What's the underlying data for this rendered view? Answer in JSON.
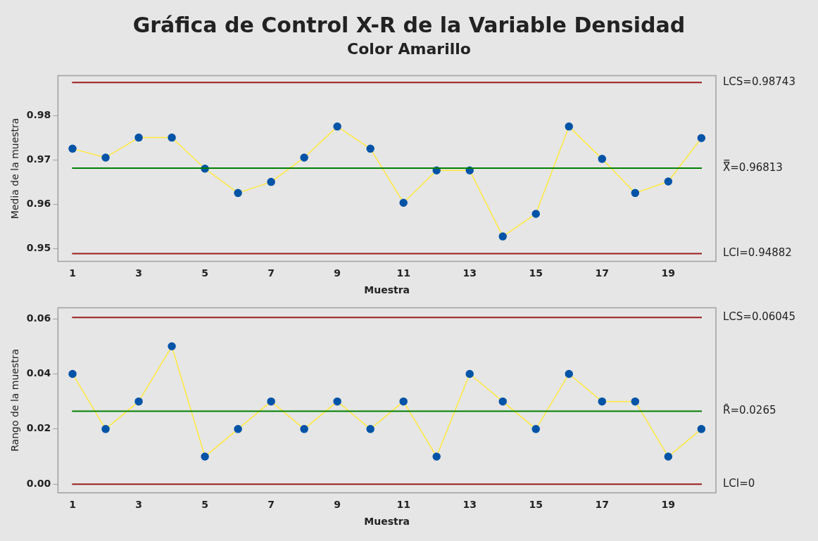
{
  "chart_data": [
    {
      "type": "line",
      "title": "Gráfica de Control X-R de la Variable Densidad",
      "subtitle": "Color Amarillo",
      "xlabel": "Muestra",
      "ylabel": "Media de la muestra",
      "x": [
        1,
        2,
        3,
        4,
        5,
        6,
        7,
        8,
        9,
        10,
        11,
        12,
        13,
        14,
        15,
        16,
        17,
        18,
        19,
        20
      ],
      "series": [
        {
          "color": "#ffe83c",
          "colors": [
            "#0054a6",
            "#0054a6",
            "#0054a6",
            "#0054a6",
            "#0054a6",
            "#0054a6",
            "#0054a6",
            "#0054a6",
            "#0054a6",
            "#0054a6",
            "#0054a6",
            "#0054a6",
            "#0054a6",
            "#0054a6",
            "#0054a6",
            "#0054a6",
            "#0054a6",
            "#0054a6",
            "#0054a6",
            "#0054a6"
          ],
          "values": [
            0.9725,
            0.9705,
            0.975,
            0.975,
            0.968,
            0.9625,
            0.965,
            0.9705,
            0.9775,
            0.9725,
            0.9603,
            0.9676,
            0.9676,
            0.9527,
            0.9578,
            0.9775,
            0.9702,
            0.9625,
            0.9651,
            0.9749
          ]
        }
      ],
      "xlim": [
        0.56,
        20.44
      ],
      "xticks": [
        1,
        3,
        5,
        7,
        9,
        11,
        13,
        15,
        17,
        19
      ],
      "ylim": [
        0.9471,
        0.989
      ],
      "yticks": [
        0.95,
        0.96,
        0.97,
        0.98
      ],
      "ref_lines": [
        {
          "axis": "y",
          "value": 0.98743,
          "label": "LCS=0.98743",
          "color": "#9b1c1c"
        },
        {
          "axis": "y",
          "value": 0.96813,
          "label": "X̿=0.96813",
          "color": "#008000"
        },
        {
          "axis": "y",
          "value": 0.94882,
          "label": "LCI=0.94882",
          "color": "#9b1c1c"
        }
      ],
      "marker": "circle",
      "line_style": "solid",
      "grid": false,
      "legend": false
    },
    {
      "type": "line",
      "xlabel": "Muestra",
      "ylabel": "Rango de la muestra",
      "x": [
        1,
        2,
        3,
        4,
        5,
        6,
        7,
        8,
        9,
        10,
        11,
        12,
        13,
        14,
        15,
        16,
        17,
        18,
        19,
        20
      ],
      "series": [
        {
          "color": "#ffe83c",
          "colors": [
            "#0054a6",
            "#0054a6",
            "#0054a6",
            "#0054a6",
            "#0054a6",
            "#0054a6",
            "#0054a6",
            "#0054a6",
            "#0054a6",
            "#0054a6",
            "#0054a6",
            "#0054a6",
            "#0054a6",
            "#0054a6",
            "#0054a6",
            "#0054a6",
            "#0054a6",
            "#0054a6",
            "#0054a6",
            "#0054a6"
          ],
          "values": [
            0.04,
            0.02,
            0.03,
            0.05,
            0.01,
            0.02,
            0.03,
            0.02,
            0.03,
            0.02,
            0.03,
            0.01,
            0.04,
            0.03,
            0.02,
            0.04,
            0.03,
            0.03,
            0.01,
            0.02
          ]
        }
      ],
      "xlim": [
        0.56,
        20.44
      ],
      "xticks": [
        1,
        3,
        5,
        7,
        9,
        11,
        13,
        15,
        17,
        19
      ],
      "ylim": [
        -0.0031,
        0.064
      ],
      "yticks": [
        {
          "value": 0,
          "label": "0.00"
        },
        {
          "value": 0.02,
          "label": "0.02"
        },
        {
          "value": 0.04,
          "label": "0.04"
        },
        {
          "value": 0.06,
          "label": "0.06"
        }
      ],
      "ref_lines": [
        {
          "axis": "y",
          "value": 0.06045,
          "label": "LCS=0.06045",
          "color": "#9b1c1c"
        },
        {
          "axis": "y",
          "value": 0.0265,
          "label": "R̄=0.0265",
          "color": "#008000"
        },
        {
          "axis": "y",
          "value": 0,
          "label": "LCI=0",
          "color": "#9b1c1c"
        }
      ],
      "marker": "circle",
      "line_style": "solid",
      "grid": false,
      "legend": false
    }
  ]
}
